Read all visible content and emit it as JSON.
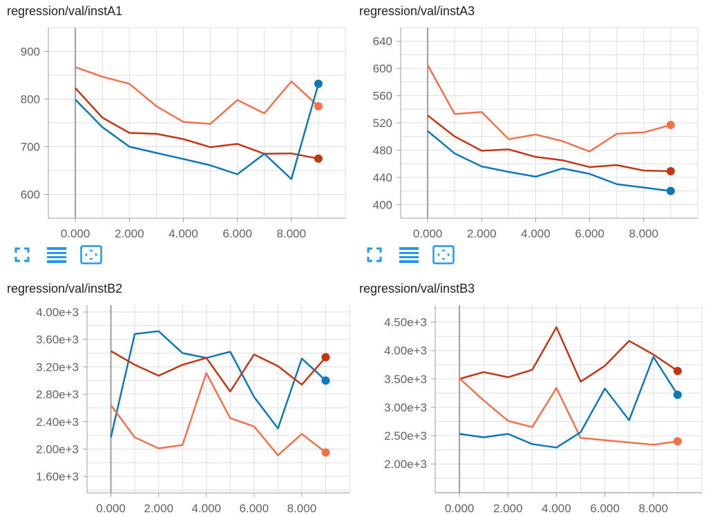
{
  "toolbar_icons": [
    "expand-icon",
    "toggle-y-log-icon",
    "fit-domain-icon"
  ],
  "colors": {
    "blue": "#0b78b8",
    "red": "#c43512",
    "orange": "#f3704a",
    "axis": "#9e9e9e",
    "grid": "#dddddd",
    "icon": "#2196f3"
  },
  "chart_data": [
    {
      "type": "line",
      "title": "regression/val/instA1",
      "xlim": [
        -1,
        10
      ],
      "xticks": [
        0,
        2,
        4,
        6,
        8
      ],
      "xtick_labels": [
        "0.000",
        "2.000",
        "4.000",
        "6.000",
        "8.000"
      ],
      "ylim": [
        550,
        950
      ],
      "yticks": [
        600,
        700,
        800,
        900
      ],
      "ytick_labels": [
        "600",
        "700",
        "800",
        "900"
      ],
      "grid": true,
      "x": [
        0,
        1,
        2,
        3,
        4,
        5,
        6,
        7,
        8,
        9
      ],
      "series": [
        {
          "color": "#f3704a",
          "values": [
            867,
            847,
            832,
            785,
            752,
            748,
            798,
            770,
            837,
            785
          ]
        },
        {
          "color": "#c43512",
          "values": [
            823,
            761,
            729,
            727,
            716,
            699,
            706,
            685,
            686,
            675
          ]
        },
        {
          "color": "#0b78b8",
          "values": [
            799,
            741,
            700,
            687,
            674,
            661,
            642,
            685,
            632,
            832
          ]
        }
      ]
    },
    {
      "type": "line",
      "title": "regression/val/instA3",
      "xlim": [
        -1,
        10
      ],
      "xticks": [
        0,
        2,
        4,
        6,
        8
      ],
      "xtick_labels": [
        "0.000",
        "2.000",
        "4.000",
        "6.000",
        "8.000"
      ],
      "ylim": [
        380,
        660
      ],
      "yticks": [
        400,
        440,
        480,
        520,
        560,
        600,
        640
      ],
      "ytick_labels": [
        "400",
        "440",
        "480",
        "520",
        "560",
        "600",
        "640"
      ],
      "grid": true,
      "x": [
        0,
        1,
        2,
        3,
        4,
        5,
        6,
        7,
        8,
        9
      ],
      "series": [
        {
          "color": "#f3704a",
          "values": [
            605,
            533,
            536,
            496,
            503,
            493,
            478,
            504,
            506,
            517
          ]
        },
        {
          "color": "#c43512",
          "values": [
            531,
            500,
            479,
            481,
            470,
            465,
            455,
            458,
            450,
            449
          ]
        },
        {
          "color": "#0b78b8",
          "values": [
            508,
            475,
            456,
            448,
            441,
            453,
            445,
            430,
            425,
            420
          ]
        }
      ]
    },
    {
      "type": "line",
      "title": "regression/val/instB2",
      "xlim": [
        -1,
        10
      ],
      "xticks": [
        0,
        2,
        4,
        6,
        8
      ],
      "xtick_labels": [
        "0.000",
        "2.000",
        "4.000",
        "6.000",
        "8.000"
      ],
      "ylim": [
        1360,
        4100
      ],
      "yticks": [
        1600,
        2000,
        2400,
        2800,
        3200,
        3600,
        4000
      ],
      "ytick_labels": [
        "1.60e+3",
        "2.00e+3",
        "2.40e+3",
        "2.80e+3",
        "3.20e+3",
        "3.60e+3",
        "4.00e+3"
      ],
      "grid": true,
      "x": [
        0,
        1,
        2,
        3,
        4,
        5,
        6,
        7,
        8,
        9
      ],
      "series": [
        {
          "color": "#0b78b8",
          "values": [
            2170,
            3680,
            3720,
            3400,
            3330,
            3420,
            2760,
            2300,
            3320,
            3000
          ]
        },
        {
          "color": "#c43512",
          "values": [
            3430,
            3230,
            3070,
            3230,
            3330,
            2840,
            3380,
            3210,
            2940,
            3340
          ]
        },
        {
          "color": "#f3704a",
          "values": [
            2640,
            2170,
            2010,
            2060,
            3110,
            2450,
            2330,
            1910,
            2220,
            1950
          ]
        }
      ]
    },
    {
      "type": "line",
      "title": "regression/val/instB3",
      "xlim": [
        -1,
        10
      ],
      "xticks": [
        0,
        2,
        4,
        6,
        8
      ],
      "xtick_labels": [
        "0.000",
        "2.000",
        "4.000",
        "6.000",
        "8.000"
      ],
      "ylim": [
        1490,
        4800
      ],
      "yticks": [
        2000,
        2500,
        3000,
        3500,
        4000,
        4500
      ],
      "ytick_labels": [
        "2.00e+3",
        "2.50e+3",
        "3.00e+3",
        "3.50e+3",
        "4.00e+3",
        "4.50e+3"
      ],
      "grid": true,
      "x": [
        0,
        1,
        2,
        3,
        4,
        5,
        6,
        7,
        8,
        9
      ],
      "series": [
        {
          "color": "#c43512",
          "values": [
            3500,
            3620,
            3530,
            3660,
            4410,
            3450,
            3730,
            4170,
            3930,
            3640
          ]
        },
        {
          "color": "#f3704a",
          "values": [
            3510,
            3120,
            2760,
            2650,
            3340,
            2460,
            2420,
            2380,
            2340,
            2400
          ]
        },
        {
          "color": "#0b78b8",
          "values": [
            2530,
            2470,
            2530,
            2350,
            2290,
            2560,
            3330,
            2770,
            3890,
            3220
          ]
        }
      ]
    }
  ]
}
